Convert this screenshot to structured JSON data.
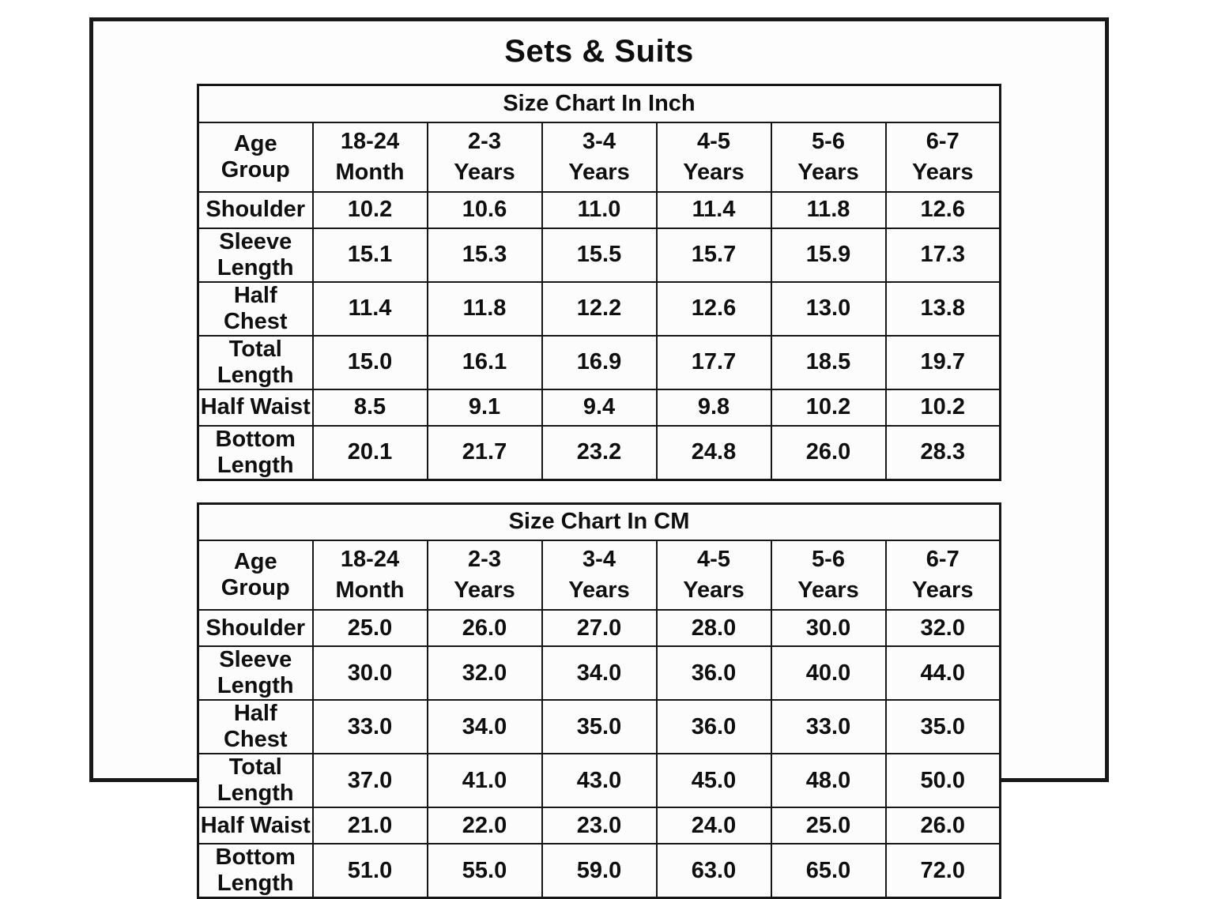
{
  "page_title": "Sets & Suits",
  "colors": {
    "frame_border": "#191919",
    "table_border": "#161616",
    "text": "#0f0f0f",
    "background": "#fdfdfd"
  },
  "tables": [
    {
      "title": "Size Chart In Inch",
      "corner_label": "Age Group",
      "columns": [
        {
          "top": "18-24",
          "bottom": "Month"
        },
        {
          "top": "2-3",
          "bottom": "Years"
        },
        {
          "top": "3-4",
          "bottom": "Years"
        },
        {
          "top": "4-5",
          "bottom": "Years"
        },
        {
          "top": "5-6",
          "bottom": "Years"
        },
        {
          "top": "6-7",
          "bottom": "Years"
        }
      ],
      "rows": [
        {
          "label": "Shoulder",
          "values": [
            "10.2",
            "10.6",
            "11.0",
            "11.4",
            "11.8",
            "12.6"
          ]
        },
        {
          "label": "Sleeve Length",
          "values": [
            "15.1",
            "15.3",
            "15.5",
            "15.7",
            "15.9",
            "17.3"
          ]
        },
        {
          "label": "Half Chest",
          "values": [
            "11.4",
            "11.8",
            "12.2",
            "12.6",
            "13.0",
            "13.8"
          ]
        },
        {
          "label": "Total Length",
          "values": [
            "15.0",
            "16.1",
            "16.9",
            "17.7",
            "18.5",
            "19.7"
          ]
        },
        {
          "label": "Half Waist",
          "values": [
            "8.5",
            "9.1",
            "9.4",
            "9.8",
            "10.2",
            "10.2"
          ]
        },
        {
          "label": "Bottom Length",
          "values": [
            "20.1",
            "21.7",
            "23.2",
            "24.8",
            "26.0",
            "28.3"
          ]
        }
      ]
    },
    {
      "title": "Size Chart In CM",
      "corner_label": "Age Group",
      "columns": [
        {
          "top": "18-24",
          "bottom": "Month"
        },
        {
          "top": "2-3",
          "bottom": "Years"
        },
        {
          "top": "3-4",
          "bottom": "Years"
        },
        {
          "top": "4-5",
          "bottom": "Years"
        },
        {
          "top": "5-6",
          "bottom": "Years"
        },
        {
          "top": "6-7",
          "bottom": "Years"
        }
      ],
      "rows": [
        {
          "label": "Shoulder",
          "values": [
            "25.0",
            "26.0",
            "27.0",
            "28.0",
            "30.0",
            "32.0"
          ]
        },
        {
          "label": "Sleeve Length",
          "values": [
            "30.0",
            "32.0",
            "34.0",
            "36.0",
            "40.0",
            "44.0"
          ]
        },
        {
          "label": "Half Chest",
          "values": [
            "33.0",
            "34.0",
            "35.0",
            "36.0",
            "33.0",
            "35.0"
          ]
        },
        {
          "label": "Total Length",
          "values": [
            "37.0",
            "41.0",
            "43.0",
            "45.0",
            "48.0",
            "50.0"
          ]
        },
        {
          "label": "Half Waist",
          "values": [
            "21.0",
            "22.0",
            "23.0",
            "24.0",
            "25.0",
            "26.0"
          ]
        },
        {
          "label": "Bottom Length",
          "values": [
            "51.0",
            "55.0",
            "59.0",
            "63.0",
            "65.0",
            "72.0"
          ]
        }
      ]
    }
  ],
  "chart_data": [
    {
      "type": "table",
      "title": "Size Chart In Inch",
      "columns": [
        "Age Group",
        "18-24 Month",
        "2-3 Years",
        "3-4 Years",
        "4-5 Years",
        "5-6 Years",
        "6-7 Years"
      ],
      "rows": [
        [
          "Shoulder",
          10.2,
          10.6,
          11.0,
          11.4,
          11.8,
          12.6
        ],
        [
          "Sleeve Length",
          15.1,
          15.3,
          15.5,
          15.7,
          15.9,
          17.3
        ],
        [
          "Half Chest",
          11.4,
          11.8,
          12.2,
          12.6,
          13.0,
          13.8
        ],
        [
          "Total Length",
          15.0,
          16.1,
          16.9,
          17.7,
          18.5,
          19.7
        ],
        [
          "Half Waist",
          8.5,
          9.1,
          9.4,
          9.8,
          10.2,
          10.2
        ],
        [
          "Bottom Length",
          20.1,
          21.7,
          23.2,
          24.8,
          26.0,
          28.3
        ]
      ]
    },
    {
      "type": "table",
      "title": "Size Chart In CM",
      "columns": [
        "Age Group",
        "18-24 Month",
        "2-3 Years",
        "3-4 Years",
        "4-5 Years",
        "5-6 Years",
        "6-7 Years"
      ],
      "rows": [
        [
          "Shoulder",
          25.0,
          26.0,
          27.0,
          28.0,
          30.0,
          32.0
        ],
        [
          "Sleeve Length",
          30.0,
          32.0,
          34.0,
          36.0,
          40.0,
          44.0
        ],
        [
          "Half Chest",
          33.0,
          34.0,
          35.0,
          36.0,
          33.0,
          35.0
        ],
        [
          "Total Length",
          37.0,
          41.0,
          43.0,
          45.0,
          48.0,
          50.0
        ],
        [
          "Half Waist",
          21.0,
          22.0,
          23.0,
          24.0,
          25.0,
          26.0
        ],
        [
          "Bottom Length",
          51.0,
          55.0,
          59.0,
          63.0,
          65.0,
          72.0
        ]
      ]
    }
  ]
}
